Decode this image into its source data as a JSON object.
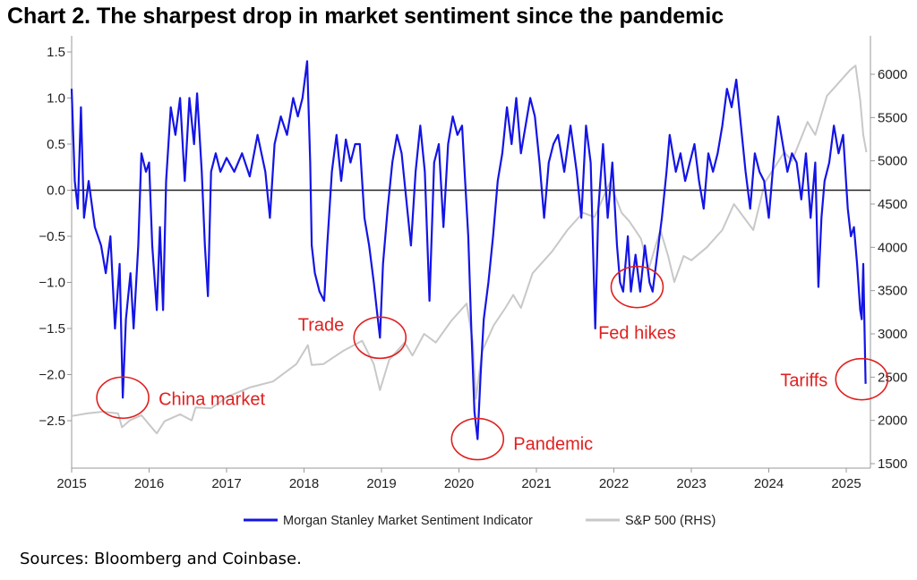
{
  "title": "Chart 2. The sharpest drop in market sentiment since the pandemic",
  "source": "Sources: Bloomberg and Coinbase.",
  "colors": {
    "sentiment": "#1414e6",
    "sp500": "#c8c8c8",
    "zero_line": "#222222",
    "annotation": "#e02020",
    "axis": "#999999"
  },
  "chart_data": {
    "type": "line",
    "x_range": [
      2015.0,
      2025.3
    ],
    "x_ticks": [
      {
        "value": 2015,
        "label": "2015"
      },
      {
        "value": 2016,
        "label": "2016"
      },
      {
        "value": 2017,
        "label": "2017"
      },
      {
        "value": 2018,
        "label": "2018"
      },
      {
        "value": 2019,
        "label": "2019"
      },
      {
        "value": 2020,
        "label": "2020"
      },
      {
        "value": 2021,
        "label": "2021"
      },
      {
        "value": 2022,
        "label": "2022"
      },
      {
        "value": 2023,
        "label": "2023"
      },
      {
        "value": 2024,
        "label": "2024"
      },
      {
        "value": 2025,
        "label": "2025"
      }
    ],
    "y_left": {
      "range": [
        -3.0,
        1.5
      ],
      "ticks": [
        {
          "value": 1.5,
          "label": "1.5"
        },
        {
          "value": 1.0,
          "label": "1.0"
        },
        {
          "value": 0.5,
          "label": "0.5"
        },
        {
          "value": 0.0,
          "label": "0.0"
        },
        {
          "value": -0.5,
          "label": "−0.5"
        },
        {
          "value": -1.0,
          "label": "−1.0"
        },
        {
          "value": -1.5,
          "label": "−1.5"
        },
        {
          "value": -2.0,
          "label": "−2.0"
        },
        {
          "value": -2.5,
          "label": "−2.5"
        }
      ]
    },
    "y_right": {
      "range": [
        1500,
        6400
      ],
      "ticks": [
        {
          "value": 6000,
          "label": "6000"
        },
        {
          "value": 5500,
          "label": "5500"
        },
        {
          "value": 5000,
          "label": "5000"
        },
        {
          "value": 4500,
          "label": "4500"
        },
        {
          "value": 4000,
          "label": "4000"
        },
        {
          "value": 3500,
          "label": "3500"
        },
        {
          "value": 3000,
          "label": "3000"
        },
        {
          "value": 2500,
          "label": "2500"
        },
        {
          "value": 2000,
          "label": "2000"
        },
        {
          "value": 1500,
          "label": "1500"
        }
      ]
    },
    "series": [
      {
        "name": "Morgan Stanley Market Sentiment Indicator",
        "axis": "left",
        "points": [
          [
            2015.0,
            1.1
          ],
          [
            2015.04,
            0.1
          ],
          [
            2015.08,
            -0.2
          ],
          [
            2015.12,
            0.9
          ],
          [
            2015.16,
            -0.3
          ],
          [
            2015.22,
            0.1
          ],
          [
            2015.3,
            -0.4
          ],
          [
            2015.38,
            -0.6
          ],
          [
            2015.44,
            -0.9
          ],
          [
            2015.5,
            -0.5
          ],
          [
            2015.56,
            -1.5
          ],
          [
            2015.62,
            -0.8
          ],
          [
            2015.66,
            -2.25
          ],
          [
            2015.7,
            -1.4
          ],
          [
            2015.76,
            -0.9
          ],
          [
            2015.8,
            -1.5
          ],
          [
            2015.86,
            -0.6
          ],
          [
            2015.9,
            0.4
          ],
          [
            2015.96,
            0.2
          ],
          [
            2016.0,
            0.3
          ],
          [
            2016.04,
            -0.6
          ],
          [
            2016.1,
            -1.3
          ],
          [
            2016.14,
            -0.4
          ],
          [
            2016.18,
            -1.3
          ],
          [
            2016.22,
            0.1
          ],
          [
            2016.28,
            0.9
          ],
          [
            2016.34,
            0.6
          ],
          [
            2016.4,
            1.0
          ],
          [
            2016.46,
            0.1
          ],
          [
            2016.52,
            1.0
          ],
          [
            2016.58,
            0.5
          ],
          [
            2016.62,
            1.05
          ],
          [
            2016.68,
            0.2
          ],
          [
            2016.72,
            -0.6
          ],
          [
            2016.76,
            -1.15
          ],
          [
            2016.8,
            0.2
          ],
          [
            2016.86,
            0.4
          ],
          [
            2016.92,
            0.2
          ],
          [
            2017.0,
            0.35
          ],
          [
            2017.1,
            0.2
          ],
          [
            2017.2,
            0.4
          ],
          [
            2017.3,
            0.15
          ],
          [
            2017.4,
            0.6
          ],
          [
            2017.5,
            0.2
          ],
          [
            2017.56,
            -0.3
          ],
          [
            2017.62,
            0.5
          ],
          [
            2017.7,
            0.8
          ],
          [
            2017.78,
            0.6
          ],
          [
            2017.86,
            1.0
          ],
          [
            2017.92,
            0.8
          ],
          [
            2017.98,
            1.0
          ],
          [
            2018.04,
            1.4
          ],
          [
            2018.08,
            0.3
          ],
          [
            2018.1,
            -0.6
          ],
          [
            2018.14,
            -0.9
          ],
          [
            2018.2,
            -1.1
          ],
          [
            2018.26,
            -1.2
          ],
          [
            2018.3,
            -0.6
          ],
          [
            2018.36,
            0.2
          ],
          [
            2018.42,
            0.6
          ],
          [
            2018.48,
            0.1
          ],
          [
            2018.54,
            0.55
          ],
          [
            2018.6,
            0.3
          ],
          [
            2018.66,
            0.5
          ],
          [
            2018.72,
            0.5
          ],
          [
            2018.78,
            -0.3
          ],
          [
            2018.84,
            -0.6
          ],
          [
            2018.9,
            -1.0
          ],
          [
            2018.94,
            -1.3
          ],
          [
            2018.98,
            -1.6
          ],
          [
            2019.02,
            -0.8
          ],
          [
            2019.08,
            -0.2
          ],
          [
            2019.14,
            0.3
          ],
          [
            2019.2,
            0.6
          ],
          [
            2019.26,
            0.4
          ],
          [
            2019.32,
            -0.1
          ],
          [
            2019.38,
            -0.6
          ],
          [
            2019.44,
            0.2
          ],
          [
            2019.5,
            0.7
          ],
          [
            2019.56,
            0.2
          ],
          [
            2019.62,
            -1.2
          ],
          [
            2019.68,
            0.3
          ],
          [
            2019.74,
            0.5
          ],
          [
            2019.8,
            -0.4
          ],
          [
            2019.86,
            0.5
          ],
          [
            2019.92,
            0.8
          ],
          [
            2019.98,
            0.6
          ],
          [
            2020.04,
            0.7
          ],
          [
            2020.08,
            0.1
          ],
          [
            2020.12,
            -0.5
          ],
          [
            2020.16,
            -1.5
          ],
          [
            2020.2,
            -2.4
          ],
          [
            2020.24,
            -2.7
          ],
          [
            2020.28,
            -2.0
          ],
          [
            2020.32,
            -1.4
          ],
          [
            2020.38,
            -1.0
          ],
          [
            2020.44,
            -0.5
          ],
          [
            2020.5,
            0.1
          ],
          [
            2020.56,
            0.4
          ],
          [
            2020.62,
            0.9
          ],
          [
            2020.68,
            0.5
          ],
          [
            2020.74,
            1.0
          ],
          [
            2020.8,
            0.4
          ],
          [
            2020.86,
            0.7
          ],
          [
            2020.92,
            1.0
          ],
          [
            2020.98,
            0.8
          ],
          [
            2021.04,
            0.3
          ],
          [
            2021.1,
            -0.3
          ],
          [
            2021.16,
            0.3
          ],
          [
            2021.22,
            0.5
          ],
          [
            2021.28,
            0.6
          ],
          [
            2021.36,
            0.2
          ],
          [
            2021.44,
            0.7
          ],
          [
            2021.52,
            0.2
          ],
          [
            2021.58,
            -0.3
          ],
          [
            2021.64,
            0.7
          ],
          [
            2021.7,
            0.3
          ],
          [
            2021.76,
            -1.5
          ],
          [
            2021.8,
            -0.2
          ],
          [
            2021.86,
            0.5
          ],
          [
            2021.92,
            -0.3
          ],
          [
            2021.98,
            0.3
          ],
          [
            2022.04,
            -0.6
          ],
          [
            2022.08,
            -1.0
          ],
          [
            2022.12,
            -1.1
          ],
          [
            2022.18,
            -0.5
          ],
          [
            2022.22,
            -1.1
          ],
          [
            2022.28,
            -0.7
          ],
          [
            2022.34,
            -1.1
          ],
          [
            2022.4,
            -0.6
          ],
          [
            2022.46,
            -1.0
          ],
          [
            2022.5,
            -1.1
          ],
          [
            2022.56,
            -0.7
          ],
          [
            2022.62,
            -0.3
          ],
          [
            2022.68,
            0.2
          ],
          [
            2022.72,
            0.6
          ],
          [
            2022.8,
            0.2
          ],
          [
            2022.86,
            0.4
          ],
          [
            2022.92,
            0.1
          ],
          [
            2022.98,
            0.3
          ],
          [
            2023.04,
            0.5
          ],
          [
            2023.1,
            0.1
          ],
          [
            2023.16,
            -0.2
          ],
          [
            2023.22,
            0.4
          ],
          [
            2023.28,
            0.2
          ],
          [
            2023.34,
            0.4
          ],
          [
            2023.4,
            0.7
          ],
          [
            2023.46,
            1.1
          ],
          [
            2023.52,
            0.9
          ],
          [
            2023.58,
            1.2
          ],
          [
            2023.64,
            0.7
          ],
          [
            2023.7,
            0.2
          ],
          [
            2023.76,
            -0.2
          ],
          [
            2023.82,
            0.4
          ],
          [
            2023.88,
            0.2
          ],
          [
            2023.94,
            0.1
          ],
          [
            2024.0,
            -0.3
          ],
          [
            2024.06,
            0.3
          ],
          [
            2024.12,
            0.8
          ],
          [
            2024.18,
            0.5
          ],
          [
            2024.24,
            0.2
          ],
          [
            2024.3,
            0.4
          ],
          [
            2024.36,
            0.3
          ],
          [
            2024.42,
            -0.1
          ],
          [
            2024.48,
            0.4
          ],
          [
            2024.54,
            -0.3
          ],
          [
            2024.6,
            0.3
          ],
          [
            2024.64,
            -1.05
          ],
          [
            2024.68,
            -0.3
          ],
          [
            2024.72,
            0.1
          ],
          [
            2024.78,
            0.3
          ],
          [
            2024.84,
            0.7
          ],
          [
            2024.9,
            0.4
          ],
          [
            2024.96,
            0.6
          ],
          [
            2025.02,
            -0.2
          ],
          [
            2025.06,
            -0.5
          ],
          [
            2025.1,
            -0.4
          ],
          [
            2025.14,
            -0.8
          ],
          [
            2025.18,
            -1.3
          ],
          [
            2025.2,
            -1.4
          ],
          [
            2025.22,
            -0.8
          ],
          [
            2025.25,
            -2.1
          ]
        ]
      },
      {
        "name": "S&P 500 (RHS)",
        "axis": "right",
        "points": [
          [
            2015.0,
            2050
          ],
          [
            2015.2,
            2080
          ],
          [
            2015.4,
            2100
          ],
          [
            2015.6,
            2080
          ],
          [
            2015.65,
            1920
          ],
          [
            2015.75,
            2000
          ],
          [
            2015.9,
            2060
          ],
          [
            2016.05,
            1900
          ],
          [
            2016.1,
            1850
          ],
          [
            2016.2,
            1990
          ],
          [
            2016.4,
            2070
          ],
          [
            2016.55,
            2000
          ],
          [
            2016.6,
            2150
          ],
          [
            2016.8,
            2140
          ],
          [
            2016.9,
            2200
          ],
          [
            2017.0,
            2270
          ],
          [
            2017.3,
            2380
          ],
          [
            2017.6,
            2450
          ],
          [
            2017.9,
            2650
          ],
          [
            2018.05,
            2870
          ],
          [
            2018.1,
            2640
          ],
          [
            2018.25,
            2650
          ],
          [
            2018.5,
            2800
          ],
          [
            2018.75,
            2920
          ],
          [
            2018.9,
            2650
          ],
          [
            2018.98,
            2350
          ],
          [
            2019.1,
            2700
          ],
          [
            2019.3,
            2900
          ],
          [
            2019.4,
            2750
          ],
          [
            2019.55,
            3000
          ],
          [
            2019.7,
            2900
          ],
          [
            2019.9,
            3150
          ],
          [
            2020.1,
            3350
          ],
          [
            2020.18,
            2900
          ],
          [
            2020.22,
            2250
          ],
          [
            2020.3,
            2800
          ],
          [
            2020.45,
            3100
          ],
          [
            2020.6,
            3300
          ],
          [
            2020.7,
            3450
          ],
          [
            2020.8,
            3300
          ],
          [
            2020.95,
            3700
          ],
          [
            2021.2,
            3950
          ],
          [
            2021.4,
            4200
          ],
          [
            2021.6,
            4400
          ],
          [
            2021.75,
            4350
          ],
          [
            2021.95,
            4750
          ],
          [
            2022.1,
            4400
          ],
          [
            2022.2,
            4300
          ],
          [
            2022.35,
            4100
          ],
          [
            2022.45,
            3750
          ],
          [
            2022.6,
            4200
          ],
          [
            2022.7,
            3900
          ],
          [
            2022.78,
            3600
          ],
          [
            2022.9,
            3900
          ],
          [
            2023.0,
            3850
          ],
          [
            2023.2,
            4000
          ],
          [
            2023.4,
            4200
          ],
          [
            2023.55,
            4500
          ],
          [
            2023.8,
            4200
          ],
          [
            2023.95,
            4750
          ],
          [
            2024.2,
            5100
          ],
          [
            2024.3,
            5000
          ],
          [
            2024.5,
            5450
          ],
          [
            2024.6,
            5300
          ],
          [
            2024.75,
            5750
          ],
          [
            2024.9,
            5900
          ],
          [
            2025.05,
            6050
          ],
          [
            2025.12,
            6100
          ],
          [
            2025.18,
            5700
          ],
          [
            2025.22,
            5300
          ],
          [
            2025.26,
            5100
          ]
        ]
      }
    ],
    "annotations": [
      {
        "label": "China market",
        "x": 2015.66,
        "y": -2.25
      },
      {
        "label": "Trade",
        "x": 2018.98,
        "y": -1.6
      },
      {
        "label": "Pandemic",
        "x": 2020.24,
        "y": -2.7
      },
      {
        "label": "Fed hikes",
        "x": 2022.3,
        "y": -1.05
      },
      {
        "label": "Tariffs",
        "x": 2025.2,
        "y": -2.05
      }
    ]
  }
}
